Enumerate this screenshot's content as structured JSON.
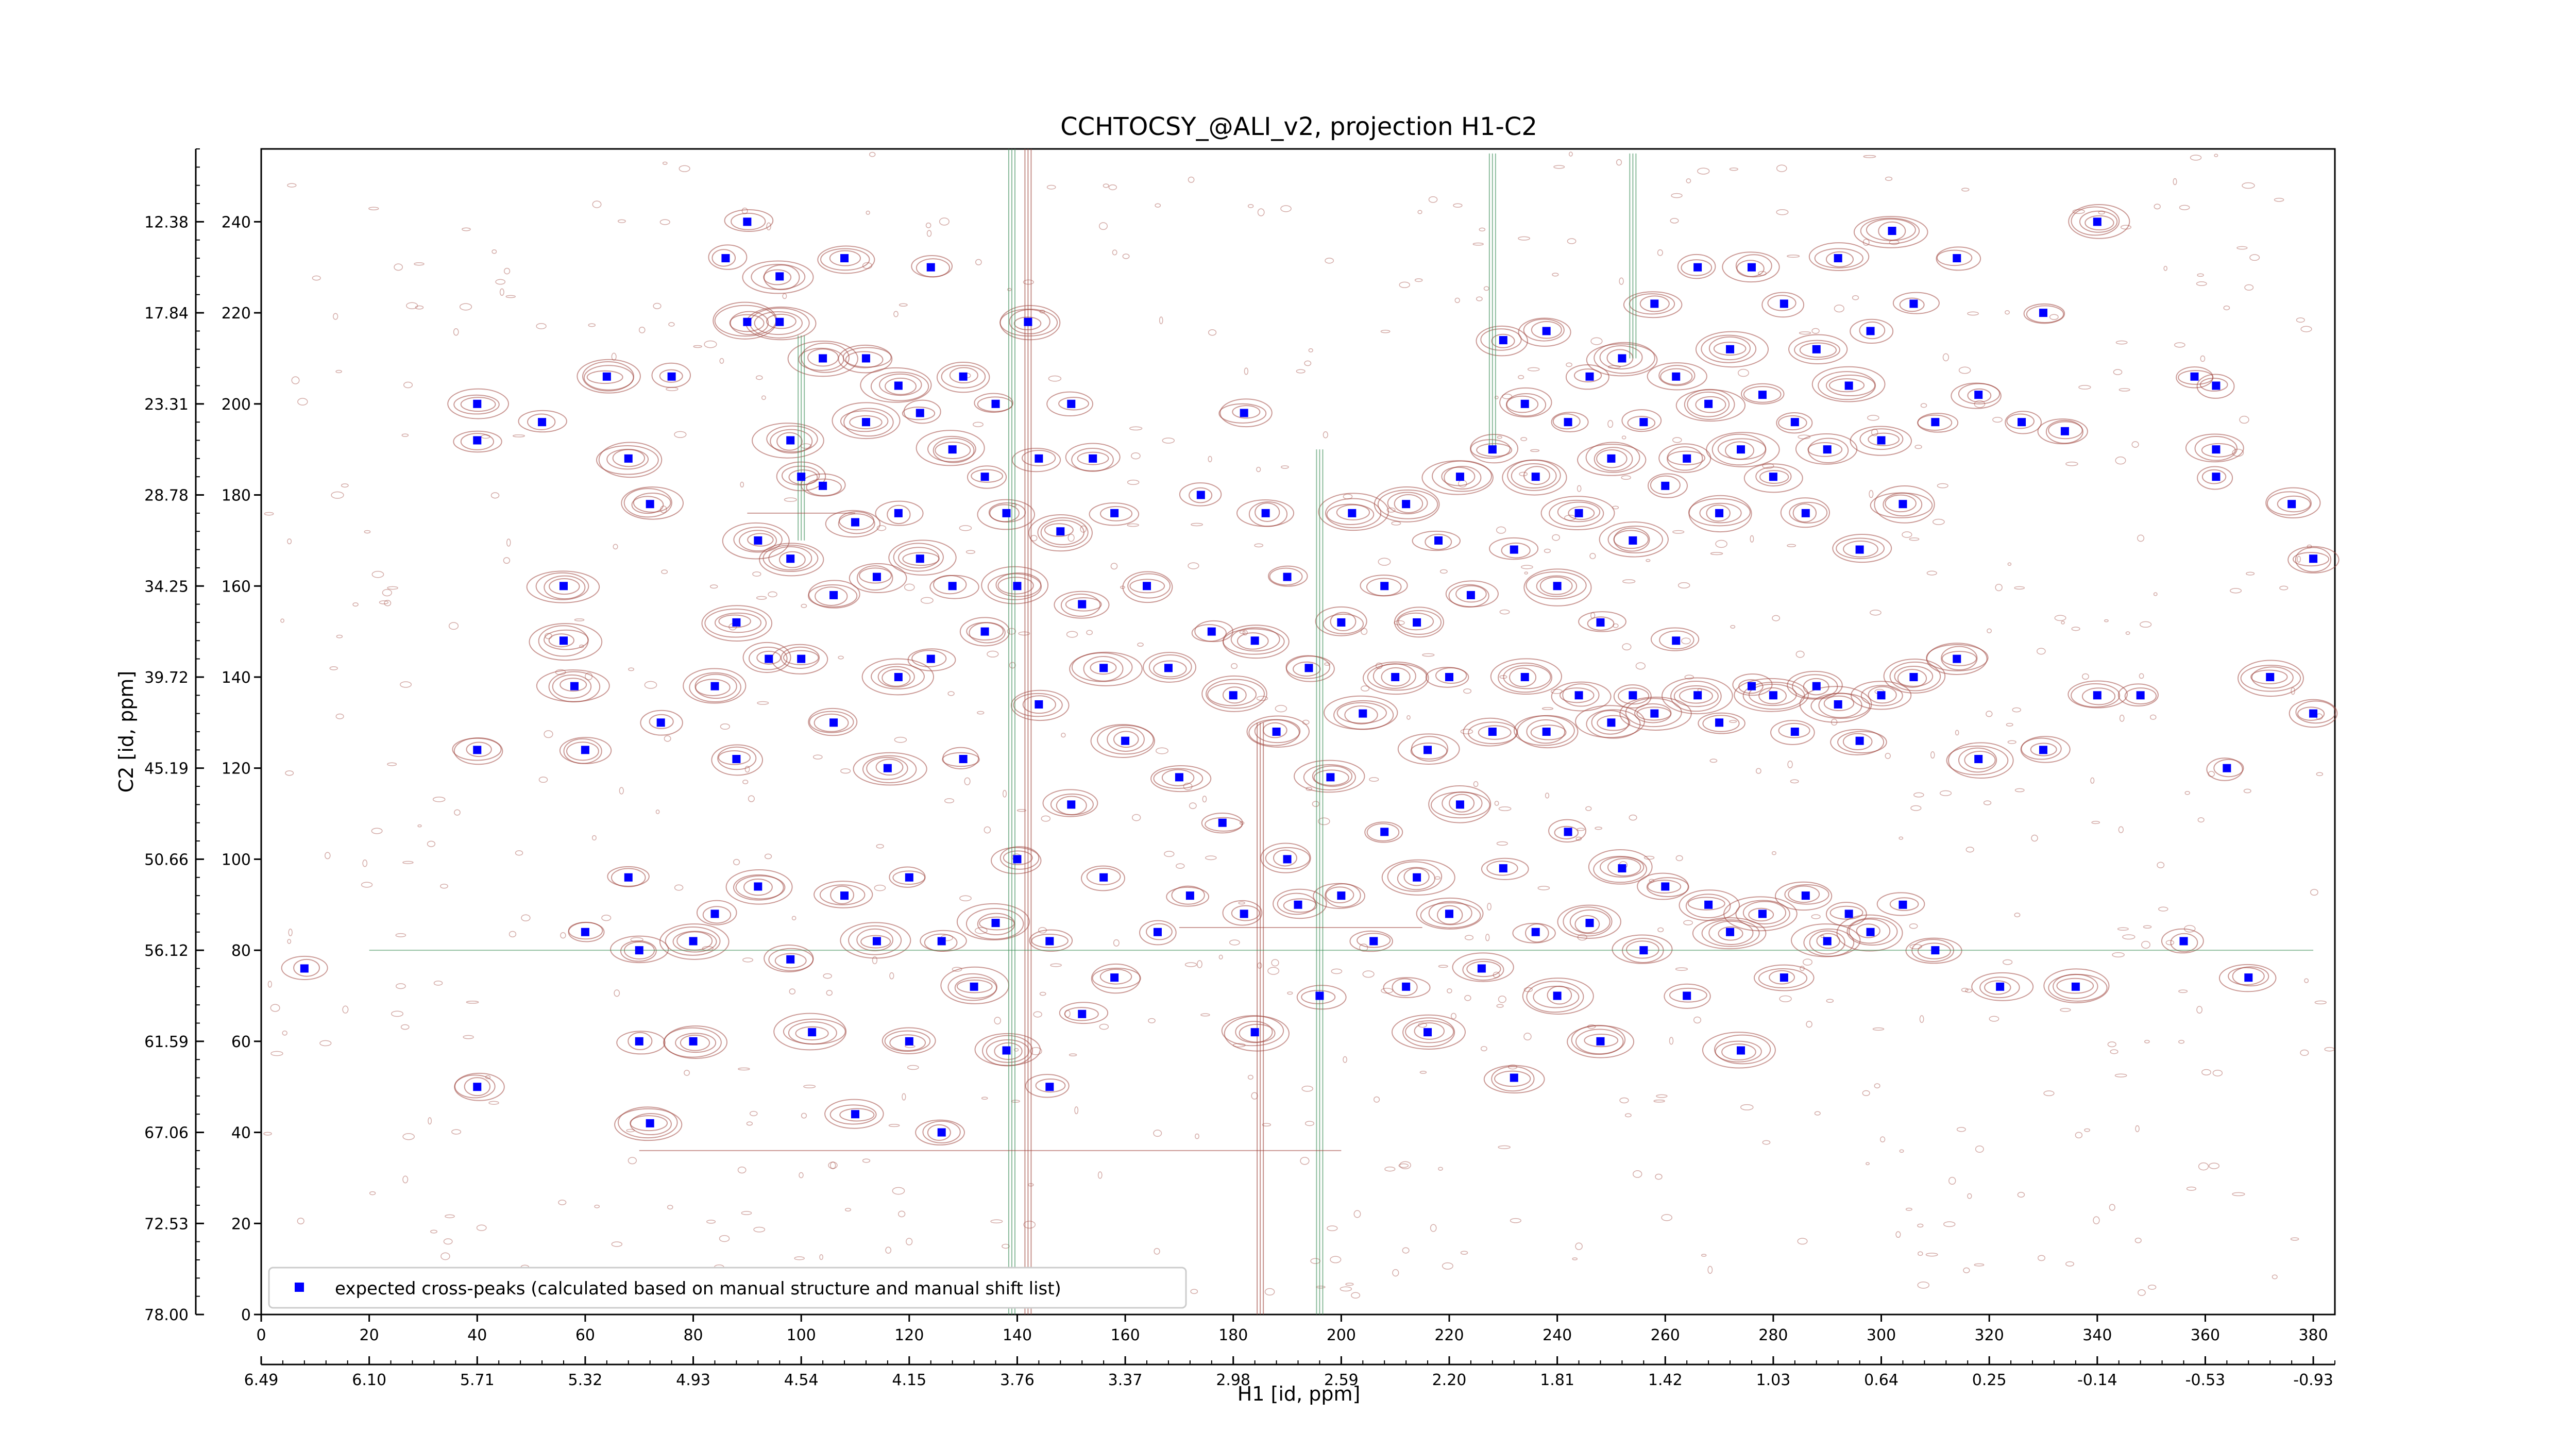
{
  "chart_data": {
    "type": "scatter",
    "title": "CCHTOCSY_@ALI_v2, projection H1-C2",
    "xlabel": "H1 [id, ppm]",
    "ylabel": "C2 [id, ppm]",
    "xlim": [
      0,
      384
    ],
    "ylim": [
      0,
      256
    ],
    "x_ticks": [
      "0",
      "20",
      "40",
      "60",
      "80",
      "100",
      "120",
      "140",
      "160",
      "180",
      "200",
      "220",
      "240",
      "260",
      "280",
      "300",
      "320",
      "340",
      "360",
      "380"
    ],
    "y_ticks": [
      "0",
      "20",
      "40",
      "60",
      "80",
      "100",
      "120",
      "140",
      "160",
      "180",
      "200",
      "220",
      "240"
    ],
    "ppm_x_ticks": [
      "6.49",
      "6.10",
      "5.71",
      "5.32",
      "4.93",
      "4.54",
      "4.15",
      "3.76",
      "3.37",
      "2.98",
      "2.59",
      "2.20",
      "1.81",
      "1.42",
      "1.03",
      "0.64",
      "0.25",
      "-0.14",
      "-0.53",
      "-0.93"
    ],
    "ppm_y_ticks": [
      "78.00",
      "72.53",
      "67.06",
      "61.59",
      "56.12",
      "50.66",
      "45.19",
      "39.72",
      "34.25",
      "28.78",
      "23.31",
      "17.84",
      "12.38"
    ],
    "grid": false,
    "legend_placement": "lower-left",
    "series": [
      {
        "name": "expected cross-peaks (calculated based on manual structure and manual shift list)",
        "color": "#0000ff",
        "marker": "square",
        "points": [
          [
            8,
            76
          ],
          [
            40,
            200
          ],
          [
            40,
            192
          ],
          [
            40,
            124
          ],
          [
            40,
            50
          ],
          [
            52,
            196
          ],
          [
            56,
            160
          ],
          [
            56,
            148
          ],
          [
            58,
            138
          ],
          [
            60,
            124
          ],
          [
            60,
            84
          ],
          [
            64,
            206
          ],
          [
            68,
            188
          ],
          [
            68,
            96
          ],
          [
            70,
            80
          ],
          [
            70,
            60
          ],
          [
            72,
            178
          ],
          [
            72,
            42
          ],
          [
            74,
            130
          ],
          [
            76,
            206
          ],
          [
            80,
            82
          ],
          [
            80,
            60
          ],
          [
            84,
            138
          ],
          [
            84,
            88
          ],
          [
            86,
            232
          ],
          [
            88,
            152
          ],
          [
            88,
            122
          ],
          [
            90,
            240
          ],
          [
            90,
            218
          ],
          [
            92,
            170
          ],
          [
            92,
            94
          ],
          [
            94,
            144
          ],
          [
            96,
            228
          ],
          [
            96,
            218
          ],
          [
            98,
            192
          ],
          [
            98,
            166
          ],
          [
            98,
            78
          ],
          [
            100,
            184
          ],
          [
            100,
            144
          ],
          [
            102,
            62
          ],
          [
            104,
            210
          ],
          [
            104,
            182
          ],
          [
            106,
            158
          ],
          [
            106,
            130
          ],
          [
            108,
            232
          ],
          [
            108,
            92
          ],
          [
            110,
            174
          ],
          [
            110,
            44
          ],
          [
            112,
            210
          ],
          [
            112,
            196
          ],
          [
            114,
            162
          ],
          [
            114,
            82
          ],
          [
            116,
            120
          ],
          [
            118,
            204
          ],
          [
            118,
            176
          ],
          [
            118,
            140
          ],
          [
            120,
            96
          ],
          [
            120,
            60
          ],
          [
            122,
            198
          ],
          [
            122,
            166
          ],
          [
            124,
            230
          ],
          [
            124,
            144
          ],
          [
            126,
            82
          ],
          [
            126,
            40
          ],
          [
            128,
            190
          ],
          [
            128,
            160
          ],
          [
            130,
            206
          ],
          [
            130,
            122
          ],
          [
            132,
            72
          ],
          [
            134,
            184
          ],
          [
            134,
            150
          ],
          [
            136,
            200
          ],
          [
            136,
            86
          ],
          [
            138,
            176
          ],
          [
            138,
            58
          ],
          [
            140,
            160
          ],
          [
            140,
            100
          ],
          [
            142,
            218
          ],
          [
            144,
            188
          ],
          [
            144,
            134
          ],
          [
            146,
            82
          ],
          [
            146,
            50
          ],
          [
            148,
            172
          ],
          [
            150,
            200
          ],
          [
            150,
            112
          ],
          [
            152,
            156
          ],
          [
            152,
            66
          ],
          [
            154,
            188
          ],
          [
            156,
            142
          ],
          [
            156,
            96
          ],
          [
            158,
            176
          ],
          [
            158,
            74
          ],
          [
            160,
            126
          ],
          [
            164,
            160
          ],
          [
            166,
            84
          ],
          [
            168,
            142
          ],
          [
            170,
            118
          ],
          [
            172,
            92
          ],
          [
            174,
            180
          ],
          [
            176,
            150
          ],
          [
            178,
            108
          ],
          [
            180,
            136
          ],
          [
            182,
            198
          ],
          [
            182,
            88
          ],
          [
            184,
            148
          ],
          [
            184,
            62
          ],
          [
            186,
            176
          ],
          [
            188,
            128
          ],
          [
            190,
            162
          ],
          [
            190,
            100
          ],
          [
            192,
            90
          ],
          [
            194,
            142
          ],
          [
            196,
            70
          ],
          [
            198,
            118
          ],
          [
            200,
            152
          ],
          [
            200,
            92
          ],
          [
            202,
            176
          ],
          [
            204,
            132
          ],
          [
            206,
            82
          ],
          [
            208,
            160
          ],
          [
            208,
            106
          ],
          [
            210,
            140
          ],
          [
            212,
            178
          ],
          [
            212,
            72
          ],
          [
            214,
            152
          ],
          [
            214,
            96
          ],
          [
            216,
            124
          ],
          [
            216,
            62
          ],
          [
            218,
            170
          ],
          [
            220,
            140
          ],
          [
            220,
            88
          ],
          [
            222,
            184
          ],
          [
            222,
            112
          ],
          [
            224,
            158
          ],
          [
            226,
            76
          ],
          [
            228,
            190
          ],
          [
            228,
            128
          ],
          [
            230,
            214
          ],
          [
            230,
            98
          ],
          [
            232,
            168
          ],
          [
            232,
            52
          ],
          [
            234,
            200
          ],
          [
            234,
            140
          ],
          [
            236,
            184
          ],
          [
            236,
            84
          ],
          [
            238,
            216
          ],
          [
            238,
            128
          ],
          [
            240,
            160
          ],
          [
            240,
            70
          ],
          [
            242,
            196
          ],
          [
            242,
            106
          ],
          [
            244,
            176
          ],
          [
            244,
            136
          ],
          [
            246,
            206
          ],
          [
            246,
            86
          ],
          [
            248,
            152
          ],
          [
            248,
            60
          ],
          [
            250,
            188
          ],
          [
            250,
            130
          ],
          [
            252,
            210
          ],
          [
            252,
            98
          ],
          [
            254,
            170
          ],
          [
            254,
            136
          ],
          [
            256,
            196
          ],
          [
            256,
            80
          ],
          [
            258,
            222
          ],
          [
            258,
            132
          ],
          [
            260,
            182
          ],
          [
            260,
            94
          ],
          [
            262,
            206
          ],
          [
            262,
            148
          ],
          [
            264,
            188
          ],
          [
            264,
            70
          ],
          [
            266,
            230
          ],
          [
            266,
            136
          ],
          [
            268,
            200
          ],
          [
            268,
            90
          ],
          [
            270,
            176
          ],
          [
            270,
            130
          ],
          [
            272,
            212
          ],
          [
            272,
            84
          ],
          [
            274,
            190
          ],
          [
            274,
            58
          ],
          [
            276,
            230
          ],
          [
            276,
            138
          ],
          [
            278,
            202
          ],
          [
            278,
            88
          ],
          [
            280,
            184
          ],
          [
            280,
            136
          ],
          [
            282,
            222
          ],
          [
            282,
            74
          ],
          [
            284,
            196
          ],
          [
            284,
            128
          ],
          [
            286,
            176
          ],
          [
            286,
            92
          ],
          [
            288,
            212
          ],
          [
            288,
            138
          ],
          [
            290,
            190
          ],
          [
            290,
            82
          ],
          [
            292,
            232
          ],
          [
            292,
            134
          ],
          [
            294,
            204
          ],
          [
            294,
            88
          ],
          [
            296,
            168
          ],
          [
            296,
            126
          ],
          [
            298,
            216
          ],
          [
            298,
            84
          ],
          [
            300,
            192
          ],
          [
            300,
            136
          ],
          [
            302,
            238
          ],
          [
            304,
            178
          ],
          [
            304,
            90
          ],
          [
            306,
            222
          ],
          [
            306,
            140
          ],
          [
            310,
            196
          ],
          [
            310,
            80
          ],
          [
            314,
            232
          ],
          [
            314,
            144
          ],
          [
            318,
            202
          ],
          [
            318,
            122
          ],
          [
            322,
            72
          ],
          [
            326,
            196
          ],
          [
            330,
            220
          ],
          [
            330,
            124
          ],
          [
            334,
            194
          ],
          [
            336,
            72
          ],
          [
            340,
            240
          ],
          [
            340,
            136
          ],
          [
            348,
            136
          ],
          [
            356,
            82
          ],
          [
            358,
            206
          ],
          [
            362,
            190
          ],
          [
            362,
            184
          ],
          [
            362,
            204
          ],
          [
            364,
            120
          ],
          [
            368,
            74
          ],
          [
            372,
            140
          ],
          [
            376,
            178
          ],
          [
            380,
            166
          ],
          [
            380,
            132
          ]
        ]
      }
    ]
  }
}
